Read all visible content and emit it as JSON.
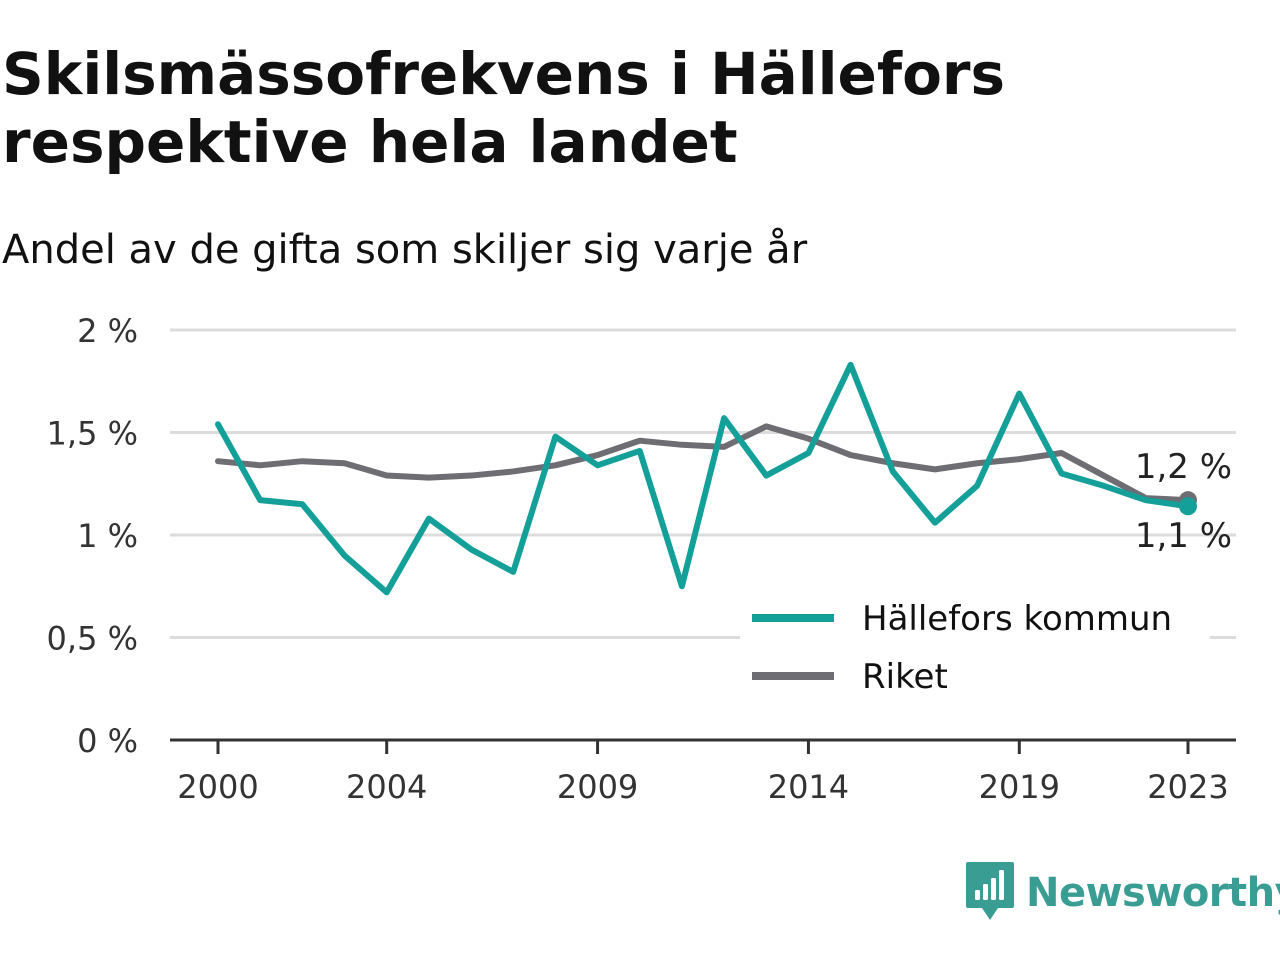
{
  "header": {
    "title": "Skilsmässofrekvens i Hällefors respektive hela landet",
    "subtitle": "Andel av de gifta som skiljer sig varje år"
  },
  "brand": {
    "name": "Newsworthy",
    "icon": "bar-chart-speech-icon",
    "color": "#3a9d94"
  },
  "chart_data": {
    "type": "line",
    "title": "Skilsmässofrekvens i Hällefors respektive hela landet",
    "subtitle": "Andel av de gifta som skiljer sig varje år",
    "xlabel": "",
    "ylabel": "",
    "x": [
      2000,
      2001,
      2002,
      2003,
      2004,
      2005,
      2006,
      2007,
      2008,
      2009,
      2010,
      2011,
      2012,
      2013,
      2014,
      2015,
      2016,
      2017,
      2018,
      2019,
      2020,
      2021,
      2022,
      2023
    ],
    "x_ticks": [
      "2000",
      "2004",
      "2009",
      "2014",
      "2019",
      "2023"
    ],
    "y_ticks": [
      {
        "value": 0,
        "label": "0 %"
      },
      {
        "value": 0.5,
        "label": "0,5 %"
      },
      {
        "value": 1,
        "label": "1 %"
      },
      {
        "value": 1.5,
        "label": "1,5 %"
      },
      {
        "value": 2,
        "label": "2 %"
      }
    ],
    "ylim": [
      0,
      2
    ],
    "grid": true,
    "legend_position": "bottom-right",
    "series": [
      {
        "name": "Hällefors kommun",
        "color": "#14a098",
        "values": [
          1.54,
          1.17,
          1.15,
          0.9,
          0.72,
          1.08,
          0.93,
          0.82,
          1.48,
          1.34,
          1.41,
          0.75,
          1.57,
          1.29,
          1.4,
          1.83,
          1.31,
          1.06,
          1.24,
          1.69,
          1.3,
          1.24,
          1.17,
          1.14
        ],
        "end_label": "1,1 %"
      },
      {
        "name": "Riket",
        "color": "#6e6d73",
        "values": [
          1.36,
          1.34,
          1.36,
          1.35,
          1.29,
          1.28,
          1.29,
          1.31,
          1.34,
          1.39,
          1.46,
          1.44,
          1.43,
          1.53,
          1.47,
          1.39,
          1.35,
          1.32,
          1.35,
          1.37,
          1.4,
          1.29,
          1.18,
          1.17
        ],
        "end_label": "1,2 %"
      }
    ]
  }
}
